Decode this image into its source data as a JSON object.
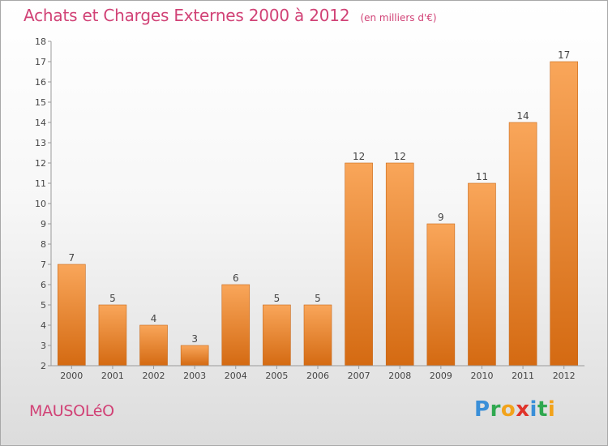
{
  "chart_data": {
    "type": "bar",
    "title": "Achats et Charges Externes 2000 à 2012",
    "subtitle": "(en milliers d'€)",
    "categories": [
      "2000",
      "2001",
      "2002",
      "2003",
      "2004",
      "2005",
      "2006",
      "2007",
      "2008",
      "2009",
      "2010",
      "2011",
      "2012"
    ],
    "values": [
      7,
      5,
      4,
      3,
      6,
      5,
      5,
      12,
      12,
      9,
      11,
      14,
      17
    ],
    "ylim": [
      2,
      18
    ],
    "yticks": [
      "2",
      "3",
      "4",
      "5",
      "6",
      "7",
      "8",
      "9",
      "10",
      "11",
      "12",
      "13",
      "14",
      "15",
      "16",
      "17",
      "18"
    ],
    "grid": false,
    "bar_color": "#ef8a2e"
  },
  "footer": {
    "commune": "MAUSOLéO",
    "logo_letters": [
      {
        "char": "P",
        "color": "#3a8fd8"
      },
      {
        "char": "r",
        "color": "#2fa84f"
      },
      {
        "char": "o",
        "color": "#f2a31b"
      },
      {
        "char": "x",
        "color": "#e0342b"
      },
      {
        "char": "i",
        "color": "#3a8fd8"
      },
      {
        "char": "t",
        "color": "#2fa84f"
      },
      {
        "char": "i",
        "color": "#f2a31b"
      }
    ]
  }
}
